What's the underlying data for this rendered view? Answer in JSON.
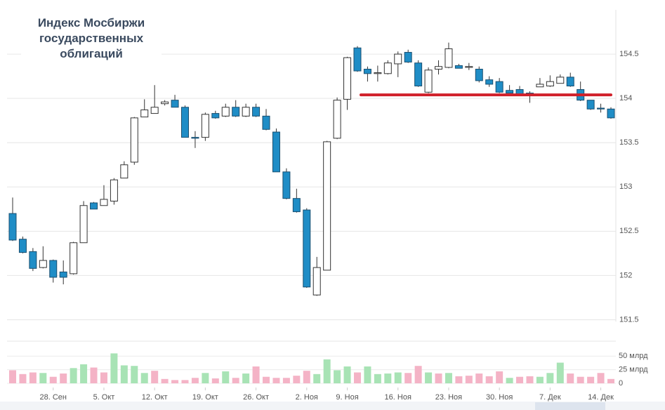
{
  "chart_data": {
    "type": "candlestick",
    "title": "Индекс Мосбиржи государственных облигаций",
    "categories": [
      null,
      null,
      null,
      null,
      "28. Сен",
      null,
      null,
      null,
      null,
      "5. Окт",
      null,
      null,
      null,
      null,
      "12. Окт",
      null,
      null,
      null,
      null,
      "19. Окт",
      null,
      null,
      null,
      null,
      "26. Окт",
      null,
      null,
      null,
      null,
      "2. Ноя",
      null,
      null,
      null,
      "9. Ноя",
      null,
      null,
      null,
      null,
      "16. Ноя",
      null,
      null,
      null,
      null,
      "23. Ноя",
      null,
      null,
      null,
      null,
      "30. Ноя",
      null,
      null,
      null,
      null,
      "7. Дек",
      null,
      null,
      null,
      null,
      "14. Дек",
      null
    ],
    "open": [
      152.7,
      152.41,
      152.27,
      152.09,
      152.17,
      152.04,
      152.02,
      152.37,
      152.82,
      152.79,
      152.84,
      153.1,
      153.28,
      153.79,
      153.83,
      153.94,
      153.98,
      153.9,
      153.56,
      153.56,
      153.83,
      153.8,
      153.9,
      153.8,
      153.9,
      153.8,
      153.62,
      153.17,
      152.87,
      152.74,
      151.78,
      152.06,
      153.55,
      153.99,
      154.57,
      154.33,
      154.28,
      154.28,
      154.39,
      154.52,
      154.4,
      154.07,
      154.33,
      154.35,
      154.37,
      154.35,
      154.33,
      154.21,
      154.19,
      154.09,
      154.1,
      154.06,
      154.13,
      154.14,
      154.17,
      154.24,
      154.1,
      153.98,
      153.89,
      153.88
    ],
    "high": [
      152.88,
      152.44,
      152.31,
      152.33,
      152.18,
      152.17,
      152.38,
      152.84,
      152.83,
      153.02,
      153.1,
      153.29,
      153.79,
      153.99,
      154.15,
      153.98,
      154.04,
      153.92,
      153.63,
      153.84,
      153.86,
      153.94,
      153.98,
      153.94,
      153.94,
      153.88,
      153.66,
      153.21,
      152.98,
      152.76,
      152.21,
      153.52,
      154.01,
      154.47,
      154.59,
      154.36,
      154.37,
      154.43,
      154.53,
      154.55,
      154.43,
      154.35,
      154.43,
      154.63,
      154.39,
      154.4,
      154.36,
      154.25,
      154.23,
      154.15,
      154.14,
      154.08,
      154.23,
      154.26,
      154.27,
      154.29,
      154.19,
      153.98,
      153.94,
      153.9
    ],
    "low": [
      152.39,
      152.25,
      152.05,
      152.08,
      151.92,
      151.9,
      152.01,
      152.37,
      152.75,
      152.79,
      152.8,
      153.1,
      153.25,
      153.79,
      153.83,
      153.92,
      153.9,
      153.56,
      153.44,
      153.52,
      153.77,
      153.79,
      153.79,
      153.79,
      153.79,
      153.64,
      153.17,
      152.86,
      152.71,
      151.86,
      151.77,
      152.06,
      153.54,
      153.87,
      154.3,
      154.19,
      154.19,
      154.27,
      154.24,
      154.4,
      154.13,
      154.06,
      154.27,
      154.34,
      154.34,
      154.32,
      154.18,
      154.13,
      154.06,
      154.06,
      154.03,
      153.95,
      154.13,
      154.13,
      154.17,
      154.13,
      153.97,
      153.87,
      153.84,
      153.77
    ],
    "close": [
      152.4,
      152.26,
      152.08,
      152.17,
      151.98,
      151.98,
      152.37,
      152.79,
      152.75,
      152.86,
      153.08,
      153.25,
      153.78,
      153.87,
      153.9,
      153.96,
      153.9,
      153.56,
      153.55,
      153.82,
      153.78,
      153.9,
      153.8,
      153.9,
      153.8,
      153.65,
      153.17,
      152.87,
      152.72,
      151.87,
      152.09,
      153.51,
      153.98,
      154.46,
      154.31,
      154.28,
      154.29,
      154.4,
      154.5,
      154.41,
      154.14,
      154.32,
      154.36,
      154.56,
      154.34,
      154.36,
      154.2,
      154.16,
      154.07,
      154.06,
      154.04,
      154.05,
      154.16,
      154.19,
      154.24,
      154.14,
      153.98,
      153.88,
      153.88,
      153.78
    ],
    "up_color": "#ffffff",
    "down_color": "#1f8dc6",
    "ylim": [
      151.48,
      155.0
    ],
    "yticks": [
      151.5,
      152,
      152.5,
      153,
      153.5,
      154,
      154.5
    ],
    "grid": true,
    "reference_line": {
      "value": 154.04,
      "color": "#d0202a",
      "from": 34,
      "to": 59
    },
    "volume": {
      "values": [
        24,
        17,
        20,
        19,
        12,
        18,
        28,
        35,
        29,
        20,
        55,
        33,
        32,
        19,
        23,
        8,
        6,
        6,
        10,
        19,
        9,
        22,
        10,
        18,
        31,
        12,
        10,
        10,
        14,
        23,
        17,
        44,
        24,
        31,
        20,
        31,
        17,
        18,
        20,
        19,
        32,
        20,
        18,
        19,
        13,
        14,
        18,
        13,
        22,
        10,
        12,
        13,
        12,
        19,
        38,
        18,
        12,
        12,
        19,
        8
      ],
      "colors": [
        "#f4b3c6",
        "#f4b3c6",
        "#f4b3c6",
        "#a8e3b5",
        "#f4b3c6",
        "#f4b3c6",
        "#a8e3b5",
        "#a8e3b5",
        "#f4b3c6",
        "#f4b3c6",
        "#a8e3b5",
        "#a8e3b5",
        "#a8e3b5",
        "#a8e3b5",
        "#f4b3c6",
        "#f4b3c6",
        "#f4b3c6",
        "#f4b3c6",
        "#f4b3c6",
        "#a8e3b5",
        "#f4b3c6",
        "#a8e3b5",
        "#f4b3c6",
        "#a8e3b5",
        "#f4b3c6",
        "#f4b3c6",
        "#f4b3c6",
        "#f4b3c6",
        "#f4b3c6",
        "#f4b3c6",
        "#a8e3b5",
        "#a8e3b5",
        "#a8e3b5",
        "#a8e3b5",
        "#f4b3c6",
        "#a8e3b5",
        "#a8e3b5",
        "#a8e3b5",
        "#a8e3b5",
        "#f4b3c6",
        "#f4b3c6",
        "#a8e3b5",
        "#f4b3c6",
        "#a8e3b5",
        "#f4b3c6",
        "#f4b3c6",
        "#f4b3c6",
        "#f4b3c6",
        "#f4b3c6",
        "#a8e3b5",
        "#f4b3c6",
        "#f4b3c6",
        "#a8e3b5",
        "#a8e3b5",
        "#a8e3b5",
        "#f4b3c6",
        "#f4b3c6",
        "#f4b3c6",
        "#f4b3c6",
        "#f4b3c6"
      ],
      "ylim": [
        0,
        80
      ],
      "yticks": [
        0,
        {
          "value": 25,
          "label": "25 млрд"
        },
        {
          "value": 50,
          "label": "50 млрд"
        }
      ]
    }
  }
}
